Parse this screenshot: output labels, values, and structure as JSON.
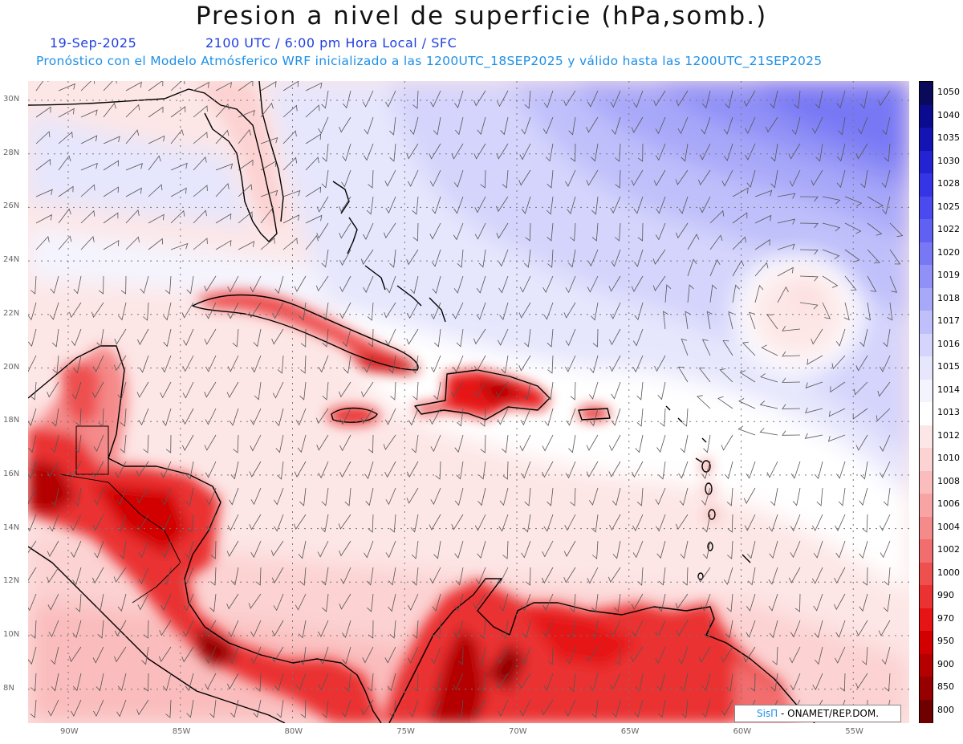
{
  "title": "Presion a nivel de superficie (hPa,somb.)",
  "date": "19-Sep-2025",
  "time": "2100 UTC / 6:00 pm Hora Local / SFC",
  "subtitle": "Pronóstico con el Modelo Atmósferico WRF inicializado a las 1200UTC_18SEP2025 y válido hasta las  1200UTC_21SEP2025",
  "credit_sis": "SisΠ",
  "credit_rest": " - ONAMET/REP.DOM.",
  "lat_labels": [
    "30N",
    "28N",
    "26N",
    "24N",
    "22N",
    "20N",
    "18N",
    "16N",
    "14N",
    "12N",
    "10N",
    "8N"
  ],
  "lon_labels": [
    "90W",
    "85W",
    "80W",
    "75W",
    "70W",
    "65W",
    "60W",
    "55W"
  ],
  "legend": {
    "levels": [
      "1050",
      "1040",
      "1035",
      "1030",
      "1028",
      "1025",
      "1022",
      "1020",
      "1019",
      "1018",
      "1017",
      "1016",
      "1015",
      "1014",
      "1013",
      "1012",
      "1010",
      "1008",
      "1006",
      "1004",
      "1002",
      "1000",
      "990",
      "970",
      "950",
      "900",
      "850",
      "800"
    ],
    "colors": [
      "#0a0a5a",
      "#0b0b8f",
      "#1414b4",
      "#2323d2",
      "#3535e6",
      "#4a4aee",
      "#6060f2",
      "#7878f5",
      "#9090f7",
      "#a8a8f9",
      "#bfbffb",
      "#d4d4fc",
      "#e6e6fd",
      "#f4f4fe",
      "#ffffff",
      "#fde6e6",
      "#fcd2d2",
      "#fabcbc",
      "#f8a4a4",
      "#f58a8a",
      "#f26e6e",
      "#ee5050",
      "#ea3232",
      "#e61414",
      "#d20000",
      "#b40000",
      "#960000",
      "#700000"
    ]
  },
  "colors": {
    "sea_pressure_high": "#7878f5",
    "sea_pressure_low": "#fcd2d2",
    "land_low": "#e61414",
    "coastline": "#000000",
    "wind_barb": "#555555"
  }
}
